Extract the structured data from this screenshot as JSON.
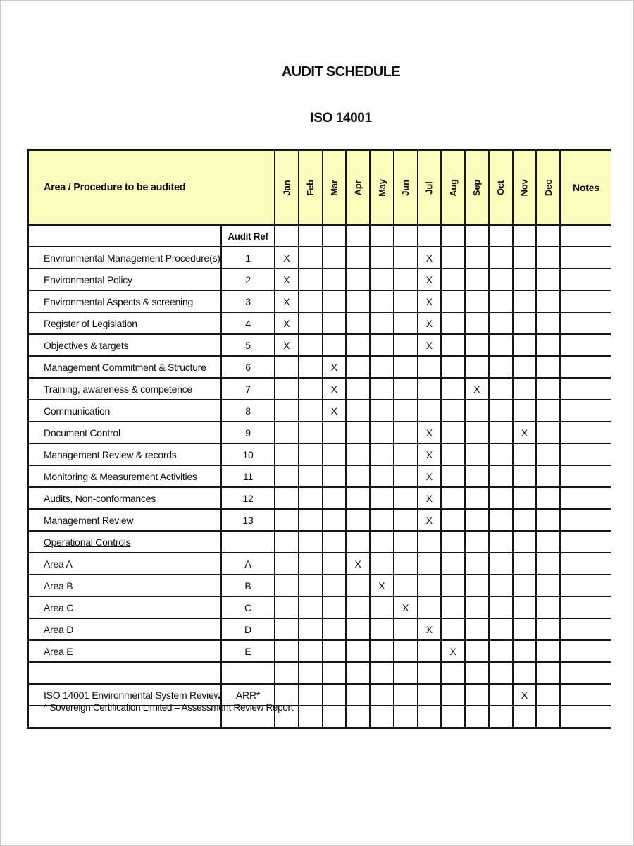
{
  "document": {
    "title": "AUDIT SCHEDULE",
    "subtitle": "ISO 14001",
    "footnote": "* Sovereign Certification Limited – Assessment Review Report"
  },
  "table": {
    "area_header": "Area / Procedure to be audited",
    "audit_ref_header": "Audit Ref",
    "notes_header": "Notes",
    "months": [
      "Jan",
      "Feb",
      "Mar",
      "Apr",
      "May",
      "Jun",
      "Jul",
      "Aug",
      "Sep",
      "Oct",
      "Nov",
      "Dec"
    ],
    "mark_symbol": "X",
    "rows": [
      {
        "area": "Environmental Management Procedure(s)",
        "ref": "1",
        "marks": [
          "Jan",
          "Jul"
        ]
      },
      {
        "area": "Environmental Policy",
        "ref": "2",
        "marks": [
          "Jan",
          "Jul"
        ]
      },
      {
        "area": "Environmental Aspects & screening",
        "ref": "3",
        "marks": [
          "Jan",
          "Jul"
        ]
      },
      {
        "area": "Register of Legislation",
        "ref": "4",
        "marks": [
          "Jan",
          "Jul"
        ]
      },
      {
        "area": "Objectives & targets",
        "ref": "5",
        "marks": [
          "Jan",
          "Jul"
        ]
      },
      {
        "area": "Management Commitment & Structure",
        "ref": "6",
        "marks": [
          "Mar"
        ]
      },
      {
        "area": "Training, awareness & competence",
        "ref": "7",
        "marks": [
          "Mar",
          "Sep"
        ]
      },
      {
        "area": "Communication",
        "ref": "8",
        "marks": [
          "Mar"
        ]
      },
      {
        "area": "Document Control",
        "ref": "9",
        "marks": [
          "Jul",
          "Nov"
        ]
      },
      {
        "area": "Management Review & records",
        "ref": "10",
        "marks": [
          "Jul"
        ]
      },
      {
        "area": "Monitoring & Measurement Activities",
        "ref": "11",
        "marks": [
          "Jul"
        ]
      },
      {
        "area": "Audits, Non-conformances",
        "ref": "12",
        "marks": [
          "Jul"
        ]
      },
      {
        "area": "Management Review",
        "ref": "13",
        "marks": [
          "Jul"
        ]
      },
      {
        "area": "Operational Controls",
        "ref": "",
        "marks": [],
        "underline": true
      },
      {
        "area": "Area A",
        "ref": "A",
        "marks": [
          "Apr"
        ]
      },
      {
        "area": "Area B",
        "ref": "B",
        "marks": [
          "May"
        ]
      },
      {
        "area": "Area C",
        "ref": "C",
        "marks": [
          "Jun"
        ]
      },
      {
        "area": "Area D",
        "ref": "D",
        "marks": [
          "Jul"
        ]
      },
      {
        "area": "Area E",
        "ref": "E",
        "marks": [
          "Aug"
        ]
      },
      {
        "area": "",
        "ref": "",
        "marks": []
      },
      {
        "area": "ISO 14001 Environmental System Review",
        "ref": "ARR*",
        "marks": [
          "Nov"
        ]
      },
      {
        "area": "",
        "ref": "",
        "marks": []
      }
    ]
  },
  "colors": {
    "header_bg": "#FCFCBE",
    "grid_line": "#161616",
    "page_edge": "#C9C9C9"
  }
}
